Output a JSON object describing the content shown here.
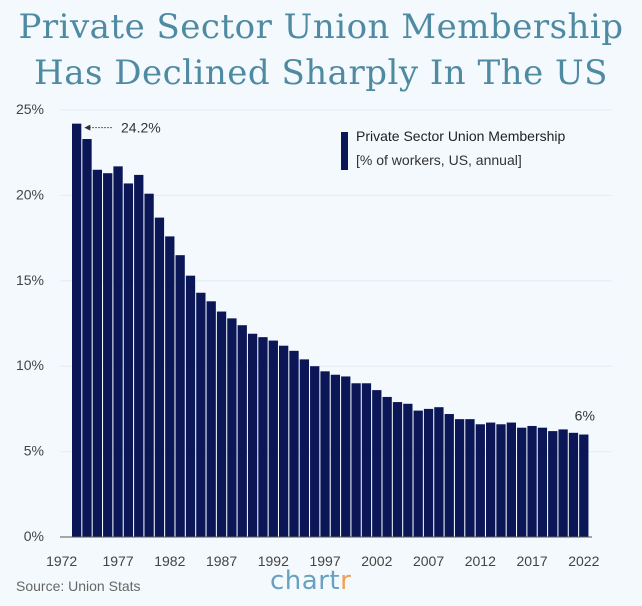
{
  "title": {
    "line1": "Private Sector Union Membership",
    "line2": "Has Declined Sharply In The US"
  },
  "source": "Source: Union Stats",
  "brand": {
    "main": "chart",
    "accent": "r"
  },
  "colors": {
    "bar": "#0b1656",
    "title": "#4f8aa3",
    "background": "#f3f9fc",
    "grid": "#e3eef3"
  },
  "chart_data": {
    "type": "bar",
    "legend": {
      "name": "Private Sector Union Membership",
      "subtitle": "[% of workers, US, annual]",
      "placement": "top-right"
    },
    "x": [
      1973,
      1974,
      1975,
      1976,
      1977,
      1978,
      1979,
      1980,
      1981,
      1982,
      1983,
      1984,
      1985,
      1986,
      1987,
      1988,
      1989,
      1990,
      1991,
      1992,
      1993,
      1994,
      1995,
      1996,
      1997,
      1998,
      1999,
      2000,
      2001,
      2002,
      2003,
      2004,
      2005,
      2006,
      2007,
      2008,
      2009,
      2010,
      2011,
      2012,
      2013,
      2014,
      2015,
      2016,
      2017,
      2018,
      2019,
      2020,
      2021,
      2022
    ],
    "values": [
      24.2,
      23.3,
      21.5,
      21.3,
      21.7,
      20.7,
      21.2,
      20.1,
      18.7,
      17.6,
      16.5,
      15.3,
      14.3,
      13.8,
      13.2,
      12.8,
      12.4,
      11.9,
      11.7,
      11.5,
      11.2,
      10.9,
      10.4,
      10.0,
      9.7,
      9.5,
      9.4,
      9.0,
      9.0,
      8.6,
      8.2,
      7.9,
      7.8,
      7.4,
      7.5,
      7.6,
      7.2,
      6.9,
      6.9,
      6.6,
      6.7,
      6.6,
      6.7,
      6.4,
      6.5,
      6.4,
      6.2,
      6.3,
      6.1,
      6.0
    ],
    "xticks": [
      "1972",
      "1977",
      "1982",
      "1987",
      "1992",
      "1997",
      "2002",
      "2007",
      "2012",
      "2017",
      "2022"
    ],
    "yticks": [
      "0%",
      "5%",
      "10%",
      "15%",
      "20%",
      "25%"
    ],
    "ylim": [
      0,
      25
    ],
    "grid": true,
    "annotations": [
      {
        "label": "24.2%",
        "x": 1973,
        "value": 24.2,
        "arrow": true
      },
      {
        "label": "6%",
        "x": 2022,
        "value": 6.0,
        "arrow": false
      }
    ]
  }
}
